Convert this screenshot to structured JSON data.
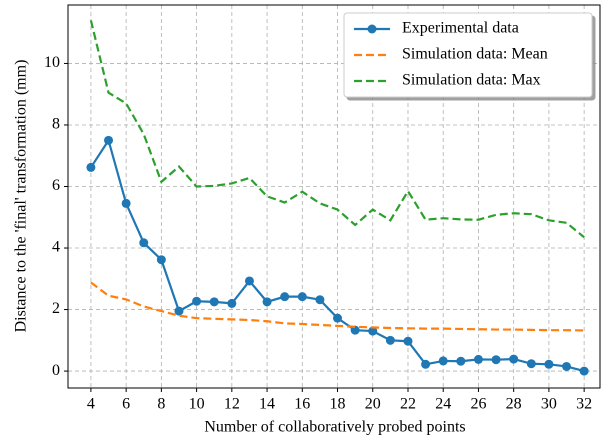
{
  "chart_data": {
    "type": "line",
    "xlabel": "Number of collaboratively probed points",
    "ylabel": "Distance to the 'final' transformation (mm)",
    "x": [
      4,
      5,
      6,
      7,
      8,
      9,
      10,
      11,
      12,
      13,
      14,
      15,
      16,
      17,
      18,
      19,
      20,
      21,
      22,
      23,
      24,
      25,
      26,
      27,
      28,
      29,
      30,
      31,
      32
    ],
    "series": [
      {
        "name": "Experimental data",
        "color": "#1f77b4",
        "linestyle": "solid",
        "marker": "o",
        "values": [
          6.62,
          7.5,
          5.45,
          4.17,
          3.62,
          1.95,
          2.27,
          2.25,
          2.2,
          2.93,
          2.25,
          2.42,
          2.42,
          2.32,
          1.72,
          1.33,
          1.3,
          1.0,
          0.97,
          0.22,
          0.33,
          0.32,
          0.38,
          0.37,
          0.39,
          0.24,
          0.22,
          0.15,
          0.0
        ]
      },
      {
        "name": "Simulation data: Mean",
        "color": "#ff7f0e",
        "linestyle": "dashed",
        "marker": "none",
        "values": [
          2.88,
          2.45,
          2.33,
          2.1,
          1.95,
          1.8,
          1.72,
          1.7,
          1.68,
          1.66,
          1.62,
          1.55,
          1.53,
          1.5,
          1.47,
          1.44,
          1.42,
          1.4,
          1.39,
          1.38,
          1.38,
          1.37,
          1.36,
          1.35,
          1.35,
          1.34,
          1.33,
          1.33,
          1.32
        ]
      },
      {
        "name": "Simulation data: Max",
        "color": "#2ca02c",
        "linestyle": "dashed",
        "marker": "none",
        "values": [
          11.4,
          9.05,
          8.7,
          7.7,
          6.15,
          6.65,
          6.0,
          6.02,
          6.1,
          6.28,
          5.68,
          5.48,
          5.83,
          5.45,
          5.25,
          4.75,
          5.25,
          4.9,
          5.85,
          4.92,
          4.97,
          4.93,
          4.92,
          5.08,
          5.13,
          5.1,
          4.9,
          4.82,
          4.35
        ]
      }
    ],
    "xlim": [
      2.7,
      32.9
    ],
    "ylim": [
      -0.55,
      11.9
    ],
    "xticks": [
      4,
      6,
      8,
      10,
      12,
      14,
      16,
      18,
      20,
      22,
      24,
      26,
      28,
      30,
      32
    ],
    "yticks": [
      0,
      2,
      4,
      6,
      8,
      10
    ],
    "grid": true,
    "legend": "upper right"
  }
}
